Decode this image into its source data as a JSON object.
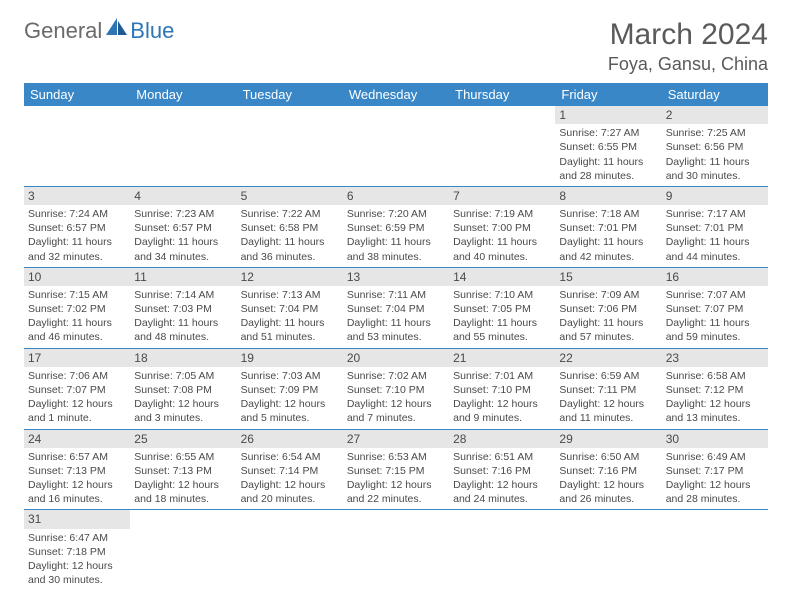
{
  "logo": {
    "text1": "General",
    "text2": "Blue"
  },
  "title": "March 2024",
  "location": "Foya, Gansu, China",
  "colors": {
    "header_bg": "#3a87c8",
    "header_text": "#ffffff",
    "daynum_bg": "#e6e6e6",
    "border": "#3a87c8",
    "body_text": "#4a4a4a",
    "logo_accent": "#2e75b6"
  },
  "weekday_labels": [
    "Sunday",
    "Monday",
    "Tuesday",
    "Wednesday",
    "Thursday",
    "Friday",
    "Saturday"
  ],
  "weeks": [
    [
      {
        "n": "",
        "lines": []
      },
      {
        "n": "",
        "lines": []
      },
      {
        "n": "",
        "lines": []
      },
      {
        "n": "",
        "lines": []
      },
      {
        "n": "",
        "lines": []
      },
      {
        "n": "1",
        "lines": [
          "Sunrise: 7:27 AM",
          "Sunset: 6:55 PM",
          "Daylight: 11 hours",
          "and 28 minutes."
        ]
      },
      {
        "n": "2",
        "lines": [
          "Sunrise: 7:25 AM",
          "Sunset: 6:56 PM",
          "Daylight: 11 hours",
          "and 30 minutes."
        ]
      }
    ],
    [
      {
        "n": "3",
        "lines": [
          "Sunrise: 7:24 AM",
          "Sunset: 6:57 PM",
          "Daylight: 11 hours",
          "and 32 minutes."
        ]
      },
      {
        "n": "4",
        "lines": [
          "Sunrise: 7:23 AM",
          "Sunset: 6:57 PM",
          "Daylight: 11 hours",
          "and 34 minutes."
        ]
      },
      {
        "n": "5",
        "lines": [
          "Sunrise: 7:22 AM",
          "Sunset: 6:58 PM",
          "Daylight: 11 hours",
          "and 36 minutes."
        ]
      },
      {
        "n": "6",
        "lines": [
          "Sunrise: 7:20 AM",
          "Sunset: 6:59 PM",
          "Daylight: 11 hours",
          "and 38 minutes."
        ]
      },
      {
        "n": "7",
        "lines": [
          "Sunrise: 7:19 AM",
          "Sunset: 7:00 PM",
          "Daylight: 11 hours",
          "and 40 minutes."
        ]
      },
      {
        "n": "8",
        "lines": [
          "Sunrise: 7:18 AM",
          "Sunset: 7:01 PM",
          "Daylight: 11 hours",
          "and 42 minutes."
        ]
      },
      {
        "n": "9",
        "lines": [
          "Sunrise: 7:17 AM",
          "Sunset: 7:01 PM",
          "Daylight: 11 hours",
          "and 44 minutes."
        ]
      }
    ],
    [
      {
        "n": "10",
        "lines": [
          "Sunrise: 7:15 AM",
          "Sunset: 7:02 PM",
          "Daylight: 11 hours",
          "and 46 minutes."
        ]
      },
      {
        "n": "11",
        "lines": [
          "Sunrise: 7:14 AM",
          "Sunset: 7:03 PM",
          "Daylight: 11 hours",
          "and 48 minutes."
        ]
      },
      {
        "n": "12",
        "lines": [
          "Sunrise: 7:13 AM",
          "Sunset: 7:04 PM",
          "Daylight: 11 hours",
          "and 51 minutes."
        ]
      },
      {
        "n": "13",
        "lines": [
          "Sunrise: 7:11 AM",
          "Sunset: 7:04 PM",
          "Daylight: 11 hours",
          "and 53 minutes."
        ]
      },
      {
        "n": "14",
        "lines": [
          "Sunrise: 7:10 AM",
          "Sunset: 7:05 PM",
          "Daylight: 11 hours",
          "and 55 minutes."
        ]
      },
      {
        "n": "15",
        "lines": [
          "Sunrise: 7:09 AM",
          "Sunset: 7:06 PM",
          "Daylight: 11 hours",
          "and 57 minutes."
        ]
      },
      {
        "n": "16",
        "lines": [
          "Sunrise: 7:07 AM",
          "Sunset: 7:07 PM",
          "Daylight: 11 hours",
          "and 59 minutes."
        ]
      }
    ],
    [
      {
        "n": "17",
        "lines": [
          "Sunrise: 7:06 AM",
          "Sunset: 7:07 PM",
          "Daylight: 12 hours",
          "and 1 minute."
        ]
      },
      {
        "n": "18",
        "lines": [
          "Sunrise: 7:05 AM",
          "Sunset: 7:08 PM",
          "Daylight: 12 hours",
          "and 3 minutes."
        ]
      },
      {
        "n": "19",
        "lines": [
          "Sunrise: 7:03 AM",
          "Sunset: 7:09 PM",
          "Daylight: 12 hours",
          "and 5 minutes."
        ]
      },
      {
        "n": "20",
        "lines": [
          "Sunrise: 7:02 AM",
          "Sunset: 7:10 PM",
          "Daylight: 12 hours",
          "and 7 minutes."
        ]
      },
      {
        "n": "21",
        "lines": [
          "Sunrise: 7:01 AM",
          "Sunset: 7:10 PM",
          "Daylight: 12 hours",
          "and 9 minutes."
        ]
      },
      {
        "n": "22",
        "lines": [
          "Sunrise: 6:59 AM",
          "Sunset: 7:11 PM",
          "Daylight: 12 hours",
          "and 11 minutes."
        ]
      },
      {
        "n": "23",
        "lines": [
          "Sunrise: 6:58 AM",
          "Sunset: 7:12 PM",
          "Daylight: 12 hours",
          "and 13 minutes."
        ]
      }
    ],
    [
      {
        "n": "24",
        "lines": [
          "Sunrise: 6:57 AM",
          "Sunset: 7:13 PM",
          "Daylight: 12 hours",
          "and 16 minutes."
        ]
      },
      {
        "n": "25",
        "lines": [
          "Sunrise: 6:55 AM",
          "Sunset: 7:13 PM",
          "Daylight: 12 hours",
          "and 18 minutes."
        ]
      },
      {
        "n": "26",
        "lines": [
          "Sunrise: 6:54 AM",
          "Sunset: 7:14 PM",
          "Daylight: 12 hours",
          "and 20 minutes."
        ]
      },
      {
        "n": "27",
        "lines": [
          "Sunrise: 6:53 AM",
          "Sunset: 7:15 PM",
          "Daylight: 12 hours",
          "and 22 minutes."
        ]
      },
      {
        "n": "28",
        "lines": [
          "Sunrise: 6:51 AM",
          "Sunset: 7:16 PM",
          "Daylight: 12 hours",
          "and 24 minutes."
        ]
      },
      {
        "n": "29",
        "lines": [
          "Sunrise: 6:50 AM",
          "Sunset: 7:16 PM",
          "Daylight: 12 hours",
          "and 26 minutes."
        ]
      },
      {
        "n": "30",
        "lines": [
          "Sunrise: 6:49 AM",
          "Sunset: 7:17 PM",
          "Daylight: 12 hours",
          "and 28 minutes."
        ]
      }
    ],
    [
      {
        "n": "31",
        "lines": [
          "Sunrise: 6:47 AM",
          "Sunset: 7:18 PM",
          "Daylight: 12 hours",
          "and 30 minutes."
        ]
      },
      {
        "n": "",
        "lines": []
      },
      {
        "n": "",
        "lines": []
      },
      {
        "n": "",
        "lines": []
      },
      {
        "n": "",
        "lines": []
      },
      {
        "n": "",
        "lines": []
      },
      {
        "n": "",
        "lines": []
      }
    ]
  ]
}
